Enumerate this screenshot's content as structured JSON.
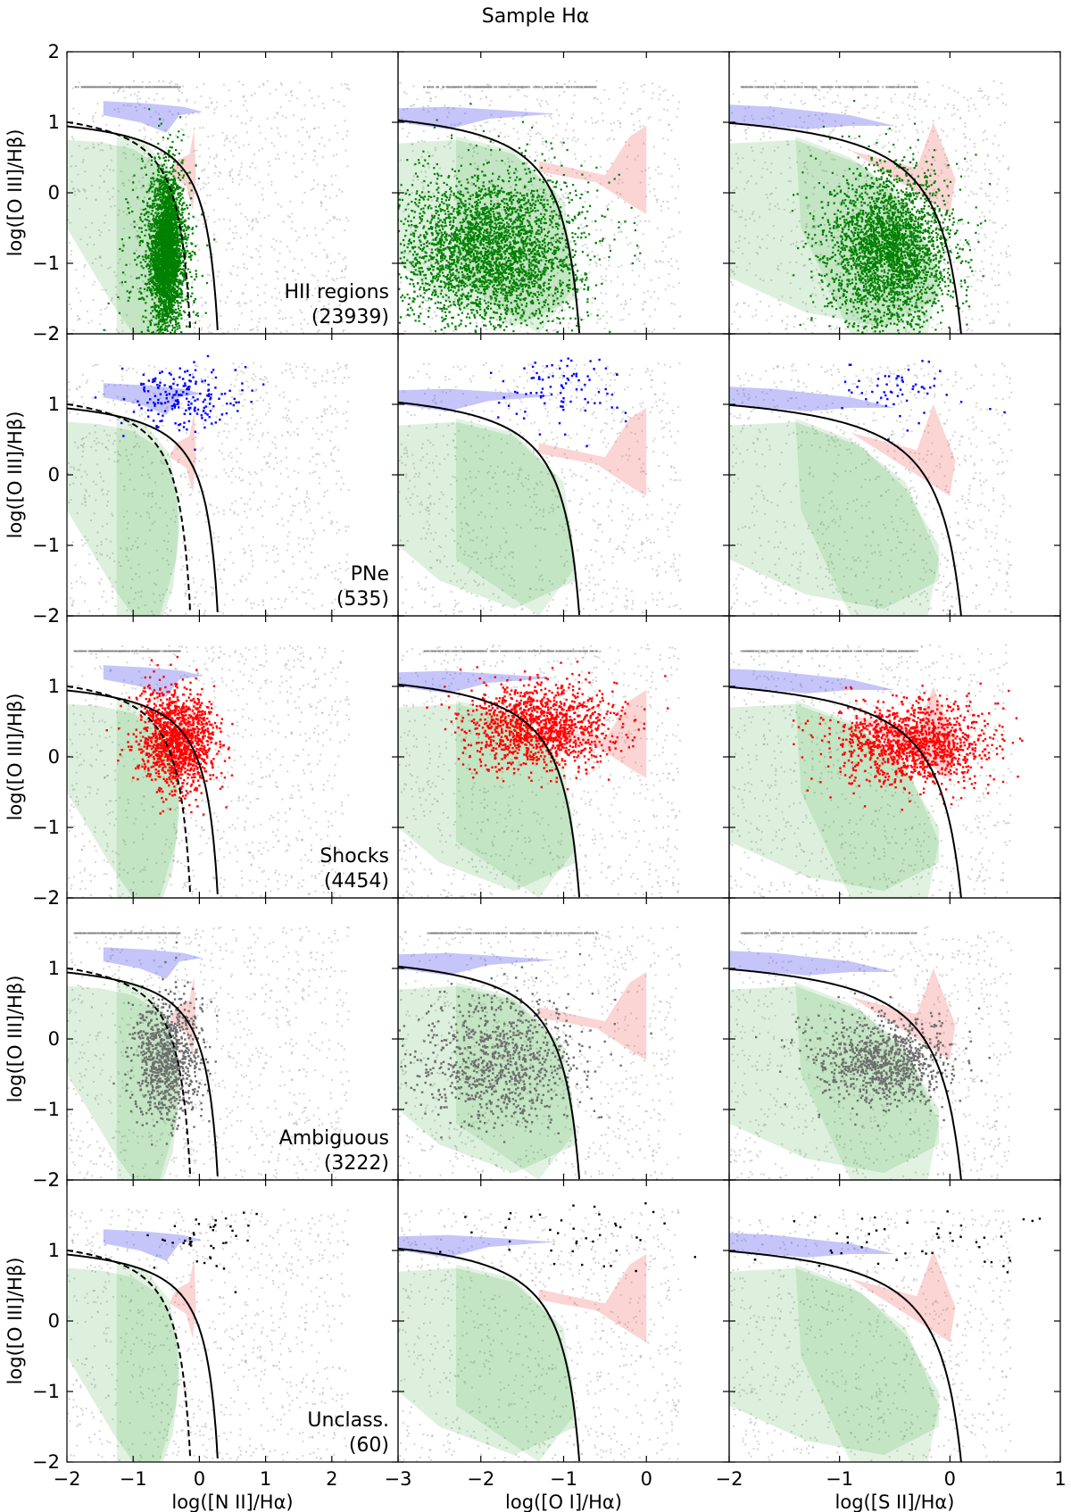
{
  "figure": {
    "title": "Sample Hα",
    "ylabel": "log([O III]/Hβ)",
    "xlabels": [
      "log([N II]/Hα)",
      "log([O I]/Hα)",
      "log([S II]/Hα)"
    ]
  },
  "chart_data": {
    "type": "scatter",
    "title": "Sample Hα",
    "ylim": [
      -2,
      2
    ],
    "yticks": [
      -2,
      -1,
      0,
      1,
      2
    ],
    "ytick_labels": [
      "−2",
      "−1",
      "0",
      "1",
      "2"
    ],
    "columns": [
      {
        "xlabel": "log([N II]/Hα)",
        "xlim": [
          -2,
          3
        ],
        "xticks": [
          -2,
          -1,
          0,
          1,
          2
        ],
        "xtick_labels": [
          "−2",
          "−1",
          "0",
          "1",
          "2"
        ]
      },
      {
        "xlabel": "log([O I]/Hα)",
        "xlim": [
          -3,
          1
        ],
        "xticks": [
          -3,
          -2,
          -1,
          0
        ],
        "xtick_labels": [
          "−3",
          "−2",
          "−1",
          "0"
        ]
      },
      {
        "xlabel": "log([S II]/Hα)",
        "xlim": [
          -2,
          1
        ],
        "xticks": [
          -2,
          -1,
          0,
          1
        ],
        "xtick_labels": [
          "−2",
          "−1",
          "0",
          "1"
        ]
      }
    ],
    "rows": [
      {
        "label": "HII regions",
        "count": "(23939)",
        "color": "#008000"
      },
      {
        "label": "PNe",
        "count": "(535)",
        "color": "#0000ff"
      },
      {
        "label": "Shocks",
        "count": "(4454)",
        "color": "#ff0000"
      },
      {
        "label": "Ambiguous",
        "count": "(3222)",
        "color": "#6e6e6e"
      },
      {
        "label": "Unclass.",
        "count": "(60)",
        "color": "#000000"
      }
    ],
    "lines": {
      "nii_kewley_solid": {
        "style": "solid",
        "form": "0.61/(x-0.47)+1.19"
      },
      "nii_kauffmann_dashed": {
        "style": "dashed",
        "form": "0.61/(x-0.05)+1.30"
      },
      "oi_kewley_solid": {
        "style": "solid",
        "form": "0.73/(x+0.59)+1.33"
      },
      "sii_kewley_solid": {
        "style": "solid",
        "form": "0.72/(x-0.32)+1.30"
      }
    },
    "regions": [
      {
        "name": "HII regions",
        "color": "#2ca02c"
      },
      {
        "name": "PNe",
        "color": "#4a4af0"
      },
      {
        "name": "Shocks",
        "color": "#f06464"
      }
    ],
    "background_color": "#a0a0a0",
    "grid": false
  }
}
